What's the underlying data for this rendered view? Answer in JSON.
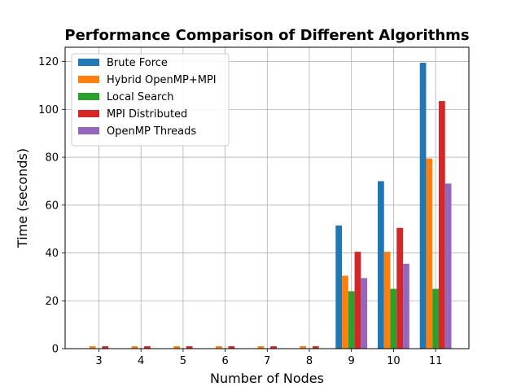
{
  "chart_data": {
    "type": "bar",
    "title": "Performance Comparison of Different Algorithms",
    "xlabel": "Number of Nodes",
    "ylabel": "Time (seconds)",
    "categories": [
      "3",
      "4",
      "5",
      "6",
      "7",
      "8",
      "9",
      "10",
      "11"
    ],
    "ylim": [
      0,
      126
    ],
    "yticks": [
      0,
      20,
      40,
      60,
      80,
      100,
      120
    ],
    "grid": true,
    "legend_position": "top-left",
    "series": [
      {
        "name": "Brute Force",
        "color": "#1f77b4",
        "values": [
          0,
          0,
          0,
          0,
          0,
          0,
          51.5,
          70,
          119.5
        ]
      },
      {
        "name": "Hybrid OpenMP+MPI",
        "color": "#ff7f0e",
        "values": [
          1,
          1,
          1,
          1,
          1,
          1,
          30.5,
          40.5,
          79.5
        ]
      },
      {
        "name": "Local Search",
        "color": "#2ca02c",
        "values": [
          0,
          0,
          0,
          0,
          0,
          0,
          24,
          25,
          25
        ]
      },
      {
        "name": "MPI Distributed",
        "color": "#d62728",
        "values": [
          1,
          1,
          1,
          1,
          1,
          1,
          40.5,
          50.5,
          103.5
        ]
      },
      {
        "name": "OpenMP Threads",
        "color": "#9467bd",
        "values": [
          0,
          0,
          0,
          0,
          0,
          0,
          29.5,
          35.5,
          69
        ]
      }
    ]
  }
}
